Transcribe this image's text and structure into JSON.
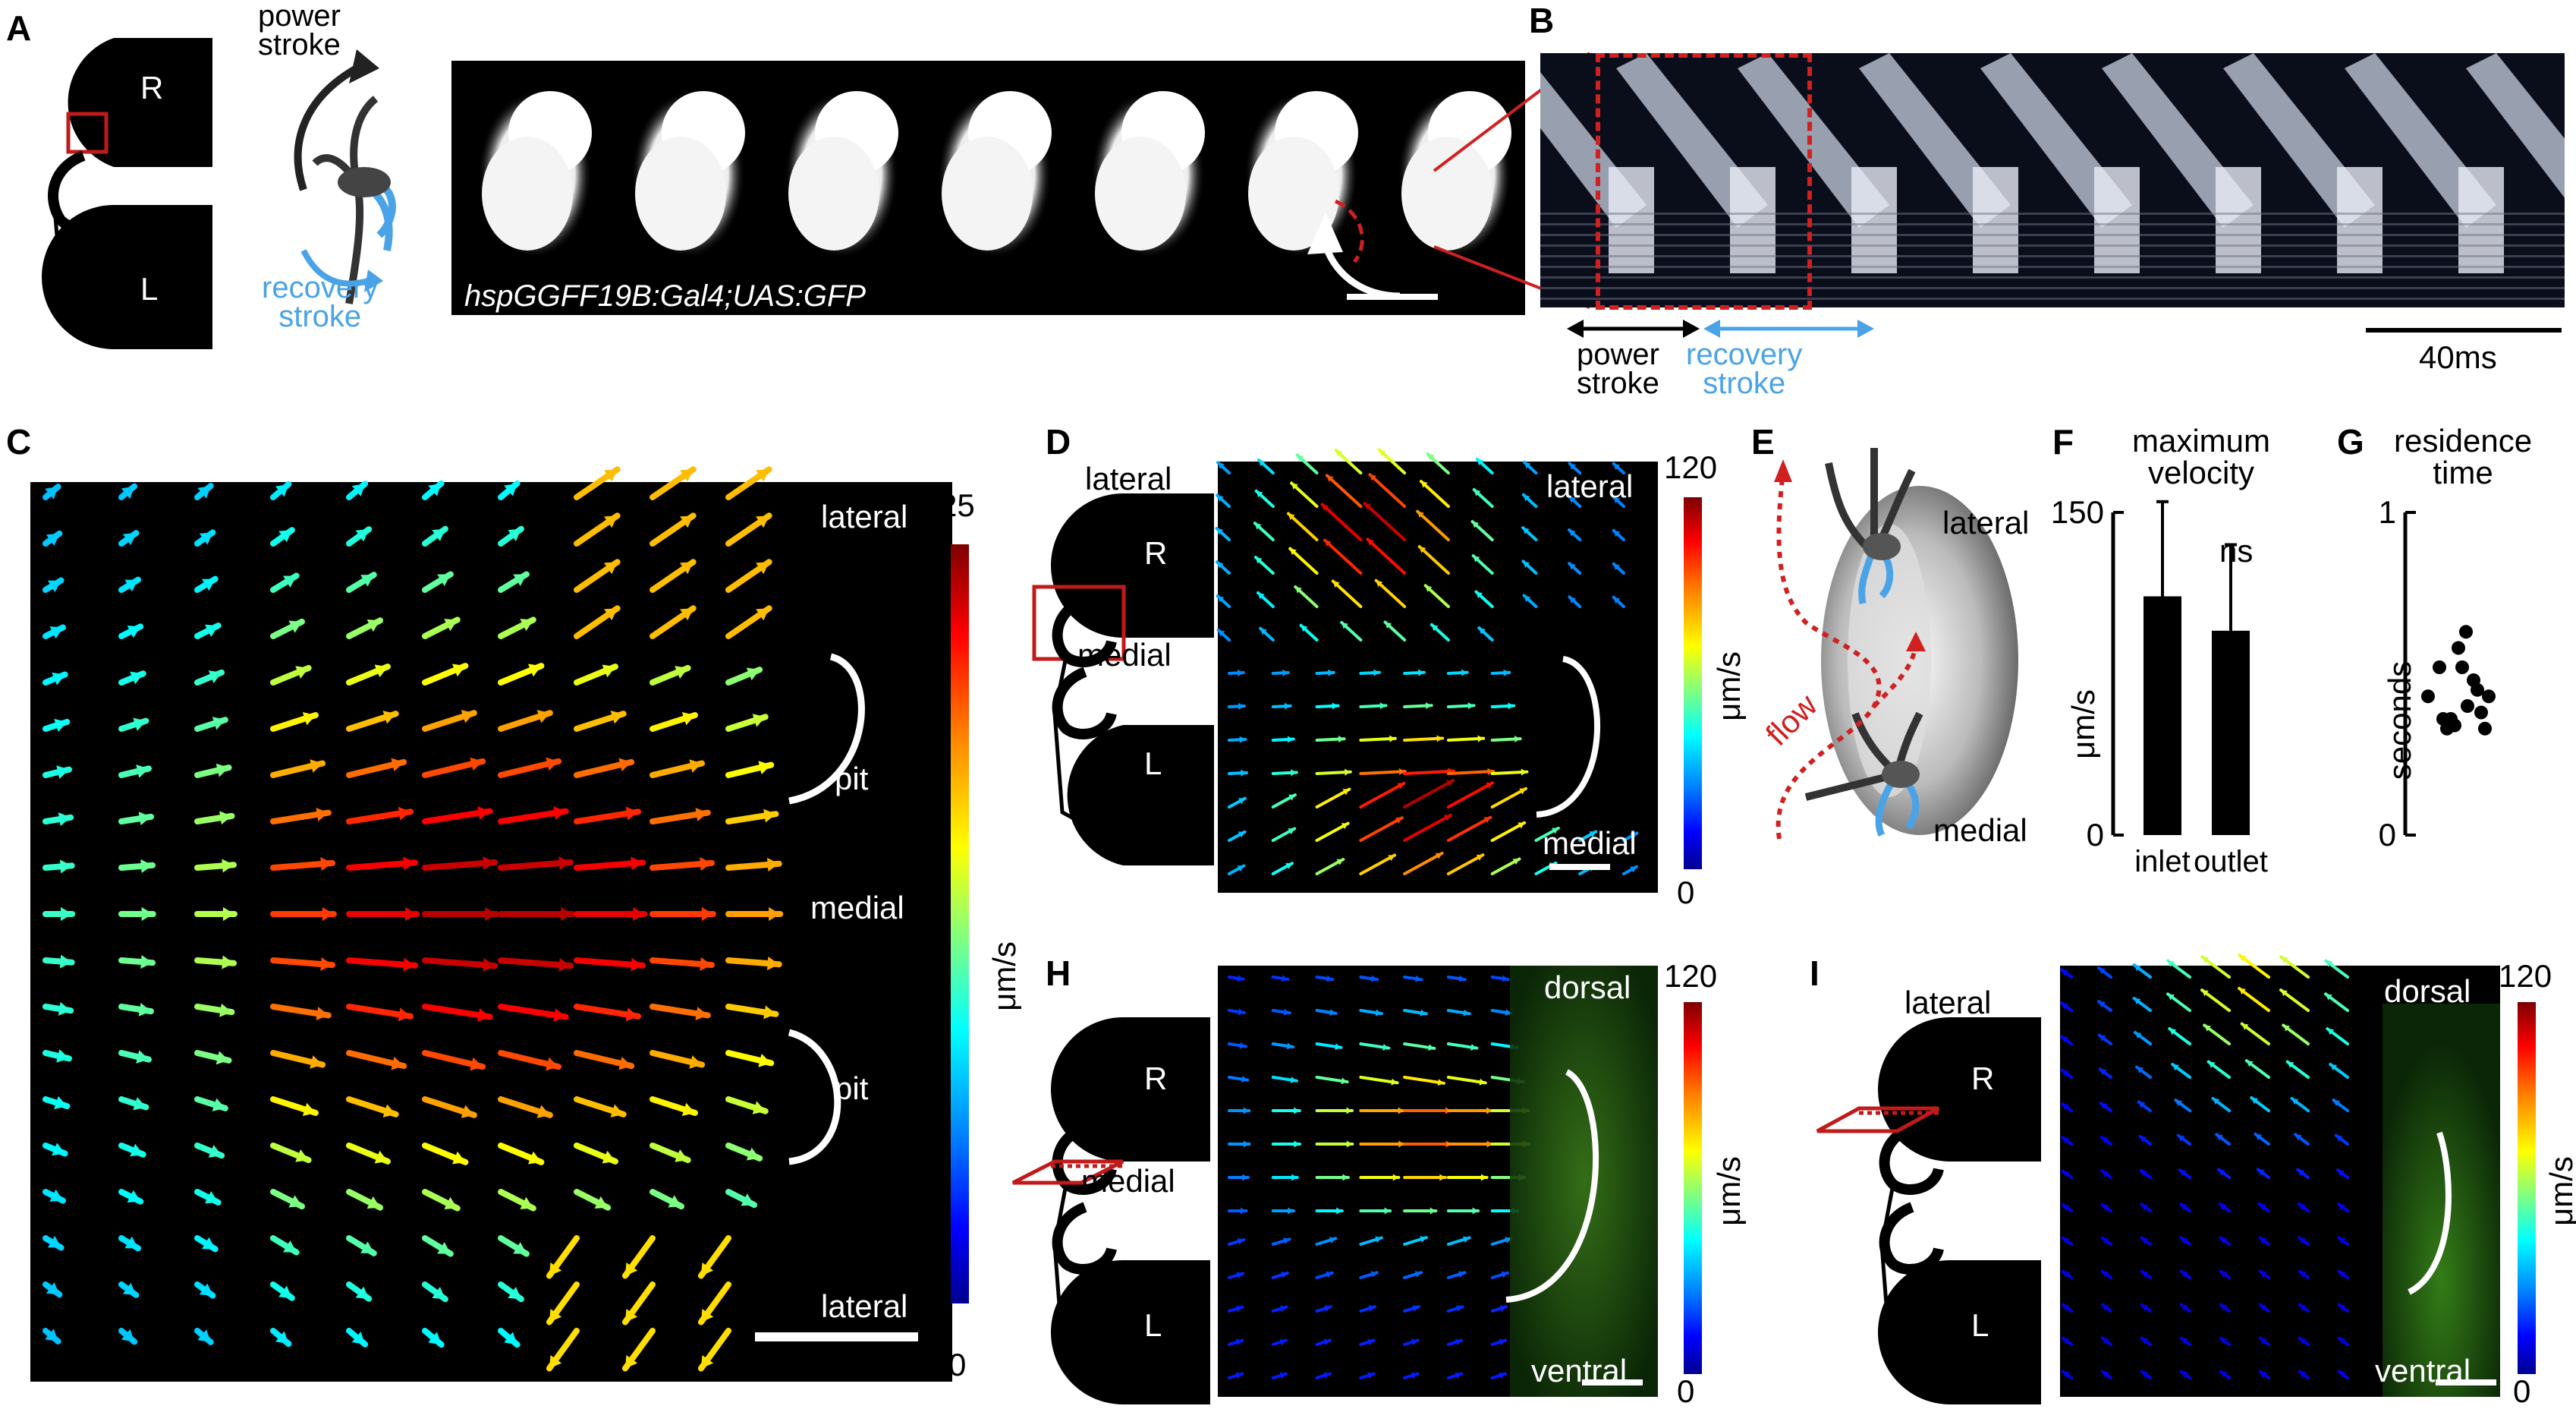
{
  "panels": {
    "A": {
      "label": "A",
      "lobes": [
        "R",
        "L"
      ],
      "power_stroke": "power\nstroke",
      "recovery_stroke": "recovery\nstroke",
      "transgene": "hspGGFF19B:Gal4;UAS:GFP"
    },
    "B": {
      "label": "B",
      "power_stroke": "power\nstroke",
      "recovery_stroke": "recovery\nstroke",
      "scale": "40ms"
    },
    "C": {
      "label": "C",
      "top_label": "lateral",
      "pit_top": "pit",
      "medial": "medial",
      "pit_bottom": "pit",
      "bottom_label": "lateral",
      "cbar_max": "25",
      "cbar_min": "0",
      "cbar_unit": "μm/s"
    },
    "D": {
      "label": "D",
      "schematic_lateral": "lateral",
      "schematic_medial": "medial",
      "lobes": [
        "R",
        "L"
      ],
      "top_label": "lateral",
      "bottom_label": "medial",
      "cbar_max": "120",
      "cbar_min": "0",
      "cbar_unit": "μm/s"
    },
    "E": {
      "label": "E",
      "lateral": "lateral",
      "medial": "medial",
      "flow": "flow"
    },
    "F": {
      "label": "F",
      "title": "maximum\nvelocity",
      "ylabel": "μm/s",
      "ns": "ns"
    },
    "G": {
      "label": "G",
      "title": "residence\ntime",
      "ylabel": "seconds"
    },
    "H": {
      "label": "H",
      "schematic_medial": "medial",
      "lobes": [
        "R",
        "L"
      ],
      "top_label": "dorsal",
      "bottom_label": "ventral",
      "cbar_max": "120",
      "cbar_min": "0",
      "cbar_unit": "μm/s"
    },
    "I": {
      "label": "I",
      "schematic_lateral": "lateral",
      "lobes": [
        "R",
        "L"
      ],
      "top_label": "dorsal",
      "bottom_label": "ventral",
      "cbar_max": "120",
      "cbar_min": "0",
      "cbar_unit": "μm/s"
    }
  },
  "chart_data": [
    {
      "type": "bar",
      "panel": "F",
      "title": "maximum velocity",
      "categories": [
        "inlet",
        "outlet"
      ],
      "values": [
        111,
        95
      ],
      "errors": [
        44,
        40
      ],
      "ylabel": "μm/s",
      "yticks": [
        "0",
        "150"
      ],
      "ylim": [
        0,
        150
      ],
      "annotation": "ns"
    },
    {
      "type": "scatter",
      "panel": "G",
      "title": "residence time",
      "ylabel": "seconds",
      "yticks": [
        "0",
        "1"
      ],
      "ylim": [
        0,
        1
      ],
      "x": [
        0.1,
        0.25,
        0.3,
        0.35,
        0.4,
        0.45,
        0.5,
        0.55,
        0.6,
        0.62,
        0.7,
        0.75,
        0.8,
        0.85,
        0.9
      ],
      "y": [
        0.43,
        0.52,
        0.36,
        0.33,
        0.36,
        0.34,
        0.58,
        0.52,
        0.63,
        0.4,
        0.48,
        0.45,
        0.38,
        0.33,
        0.43
      ]
    }
  ]
}
